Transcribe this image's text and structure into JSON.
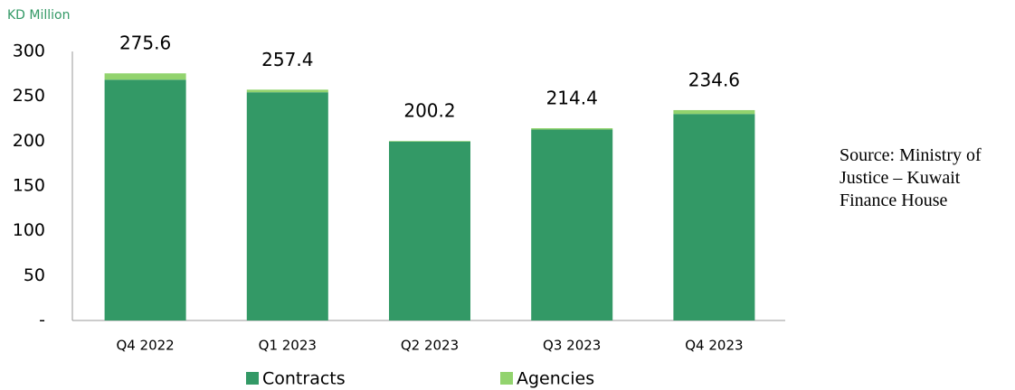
{
  "chart_data": {
    "type": "stacked_bar",
    "y_axis_label": "KD Million",
    "categories": [
      "Q4 2022",
      "Q1 2023",
      "Q2 2023",
      "Q3 2023",
      "Q4 2023"
    ],
    "series": [
      {
        "name": "Contracts",
        "color": "#339966",
        "values": [
          268.5,
          254.5,
          199.6,
          212.9,
          230.3
        ]
      },
      {
        "name": "Agencies",
        "color": "#92d36e",
        "values": [
          7.1,
          2.9,
          0.6,
          1.5,
          4.3
        ]
      }
    ],
    "totals": [
      275.6,
      257.4,
      200.2,
      214.4,
      234.6
    ],
    "ylim": [
      0,
      300
    ],
    "yticks": [
      {
        "value": 0,
        "label": "-"
      },
      50,
      100,
      150,
      200,
      250,
      300
    ],
    "grid": false,
    "legend": "bottom",
    "annotation": "Source: Ministry of Justice – Kuwait Finance House"
  }
}
